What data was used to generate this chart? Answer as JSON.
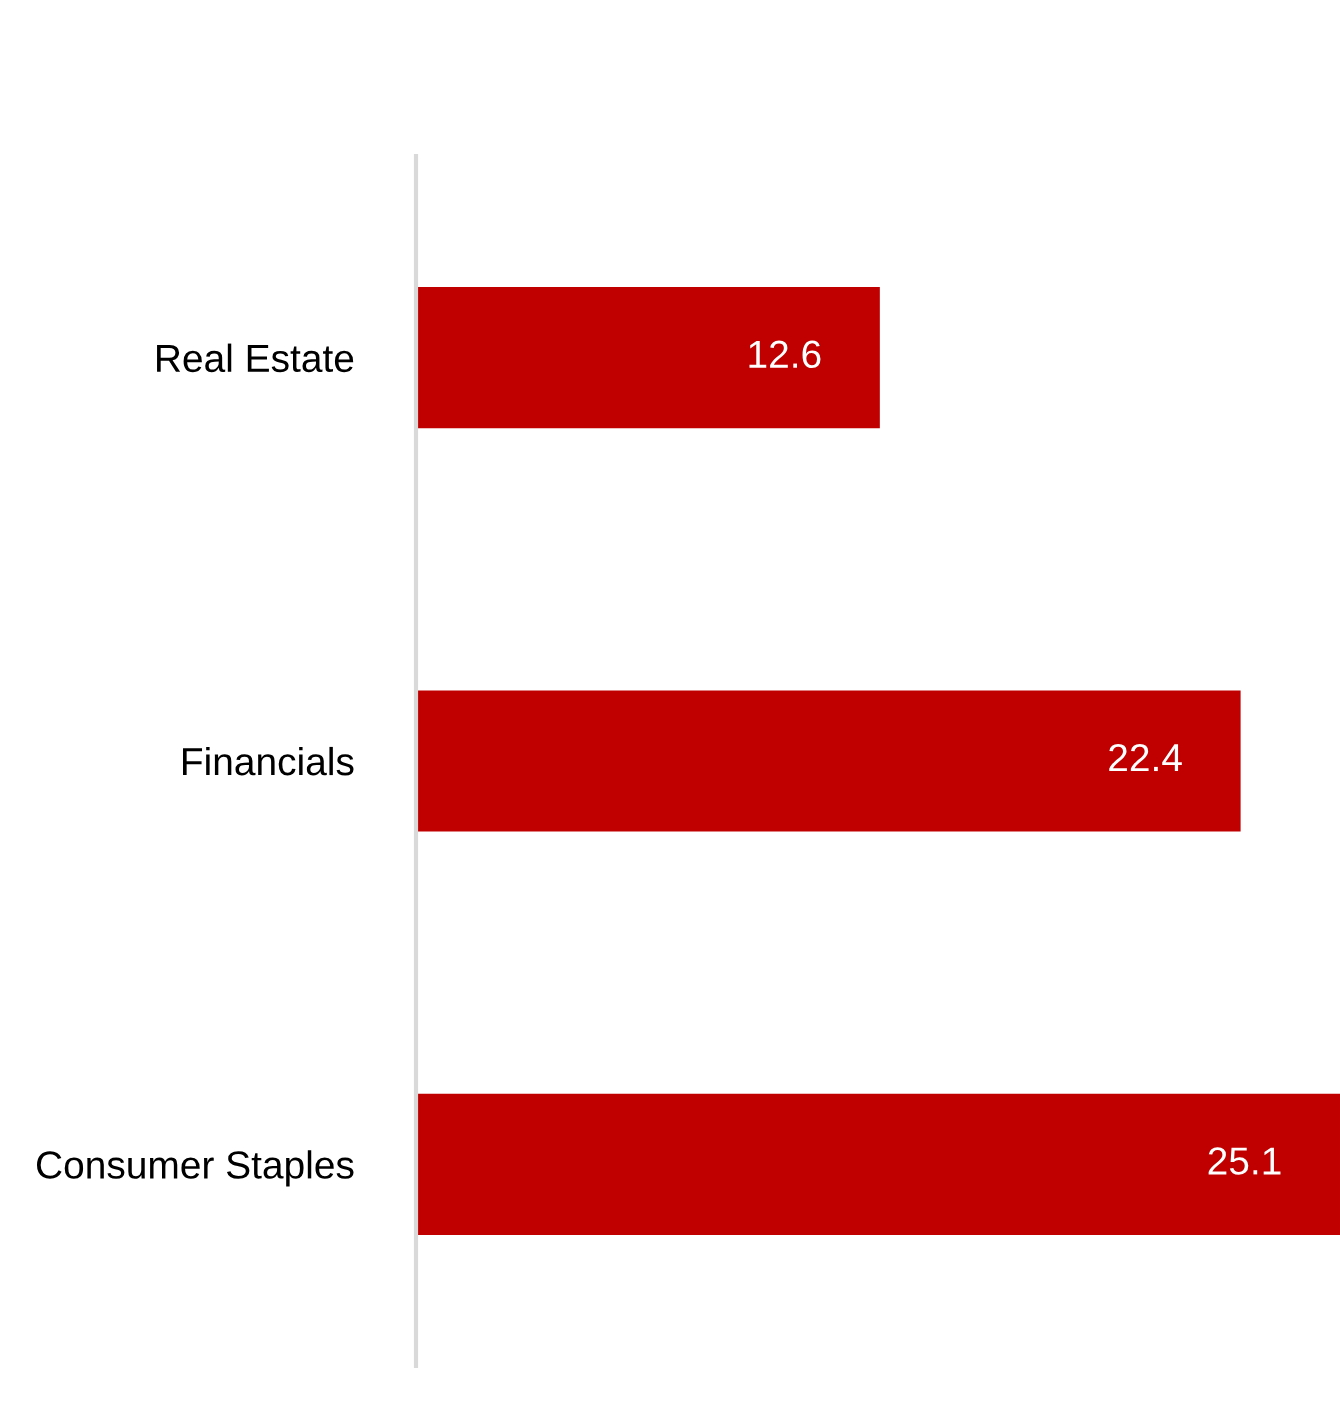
{
  "chart_data": {
    "type": "bar",
    "orientation": "horizontal",
    "categories": [
      "Real Estate",
      "Financials",
      "Consumer Staples"
    ],
    "series": [
      {
        "color": "#c00000",
        "values": [
          12.6,
          22.4,
          25.1
        ]
      }
    ],
    "data_labels": true,
    "grid": false,
    "legend": false
  }
}
